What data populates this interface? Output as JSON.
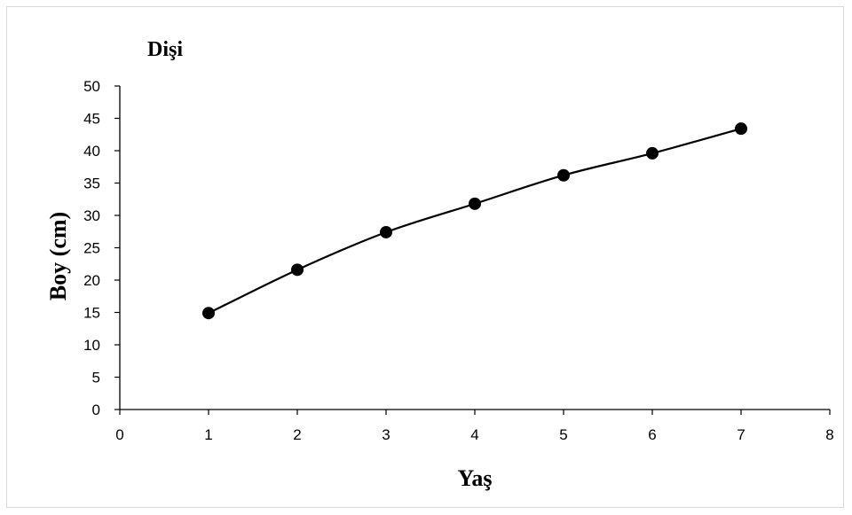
{
  "chart_data": {
    "type": "scatter",
    "title": "Dişi",
    "xlabel": "Yaş",
    "ylabel": "Boy (cm)",
    "xlim": [
      0,
      8
    ],
    "ylim": [
      0,
      50
    ],
    "x_ticks": [
      0,
      1,
      2,
      3,
      4,
      5,
      6,
      7,
      8
    ],
    "y_ticks": [
      0,
      5,
      10,
      15,
      20,
      25,
      30,
      35,
      40,
      45,
      50
    ],
    "grid": false,
    "legend": "none",
    "series": [
      {
        "x": [
          1,
          2,
          3,
          4,
          5,
          6,
          7
        ],
        "y": [
          14.9,
          21.6,
          27.4,
          31.8,
          36.2,
          39.6,
          43.4
        ],
        "marker_color": "#000000",
        "trendline": true
      }
    ]
  }
}
